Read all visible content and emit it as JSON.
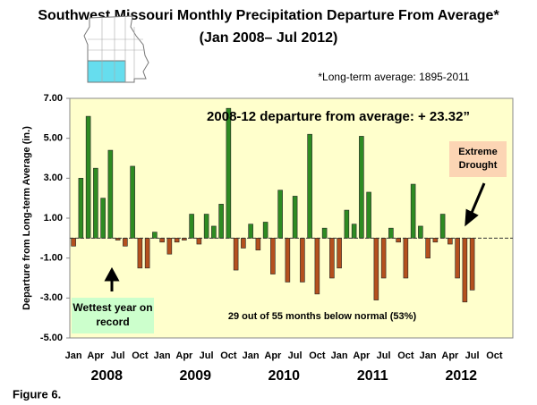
{
  "chart_data": {
    "type": "bar",
    "title": "Southwest Missouri Monthly Precipitation Departure From Average*",
    "subtitle": "(Jan 2008– Jul 2012)",
    "footnote": "*Long-term average: 1895-2011",
    "y_label": "Departure from Long-term Average (in.)",
    "figure_label": "Figure 6.",
    "annotations": [
      "2008-12 departure from average: + 23.32”",
      "Extreme Drought",
      "Wettest year on record",
      "29 out of 55 months below normal (53%)"
    ],
    "years": [
      "2008",
      "2009",
      "2010",
      "2011",
      "2012"
    ],
    "categories": [
      "Jan",
      null,
      null,
      "Apr",
      null,
      null,
      "Jul",
      null,
      null,
      "Oct",
      null,
      null,
      "Jan",
      null,
      null,
      "Apr",
      null,
      null,
      "Jul",
      null,
      null,
      "Oct",
      null,
      null,
      "Jan",
      null,
      null,
      "Apr",
      null,
      null,
      "Jul",
      null,
      null,
      "Oct",
      null,
      null,
      "Jan",
      null,
      null,
      "Apr",
      null,
      null,
      "Jul",
      null,
      null,
      "Oct",
      null,
      null,
      "Jan",
      null,
      null,
      "Apr",
      null,
      null,
      "Jul",
      null,
      null,
      "Oct",
      null,
      null
    ],
    "values": [
      -0.4,
      3.0,
      6.1,
      3.5,
      2.0,
      4.4,
      -0.1,
      -0.4,
      3.6,
      -1.5,
      -1.5,
      0.3,
      -0.2,
      -0.8,
      -0.2,
      -0.1,
      1.2,
      -0.3,
      1.2,
      0.6,
      1.7,
      6.5,
      -1.6,
      -0.5,
      0.7,
      -0.6,
      0.8,
      -1.8,
      2.4,
      -2.2,
      2.1,
      -2.2,
      5.2,
      -2.8,
      0.5,
      -2.0,
      -1.5,
      1.4,
      0.7,
      5.1,
      2.3,
      -3.1,
      -2.0,
      0.5,
      -0.2,
      -2.0,
      2.7,
      0.6,
      -1.0,
      -0.2,
      1.2,
      -0.3,
      -2.0,
      -3.2,
      -2.6,
      null,
      null,
      null,
      null,
      null
    ],
    "color": "#2e8b22",
    "negative_color": "#b4501e",
    "ylim": [
      -5,
      7
    ],
    "yticks": [
      {
        "value": -5,
        "label": "-5.00"
      },
      {
        "value": -3,
        "label": "-3.00"
      },
      {
        "value": -1,
        "label": "-1.00"
      },
      {
        "value": 1,
        "label": "1.00"
      },
      {
        "value": 3,
        "label": "3.00"
      },
      {
        "value": 5,
        "label": "5.00"
      },
      {
        "value": 7,
        "label": "7.00"
      }
    ],
    "background": "#ffffcc"
  }
}
